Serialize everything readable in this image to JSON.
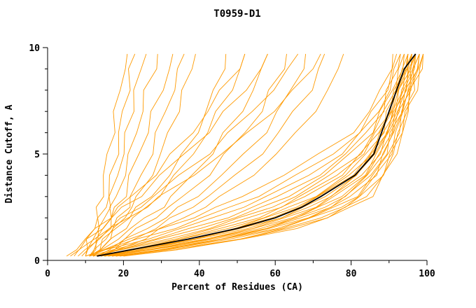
{
  "chart_data": {
    "type": "line",
    "title": "T0959-D1",
    "xlabel": "Percent of Residues (CA)",
    "ylabel": "Distance Cutoff, A",
    "xlim": [
      0,
      100
    ],
    "ylim": [
      0,
      10
    ],
    "x_major_ticks": [
      0,
      20,
      40,
      60,
      80,
      100
    ],
    "x_minor_step": 10,
    "y_major_ticks": [
      0,
      5,
      10
    ],
    "y_minor_step": 1,
    "grid": false,
    "legend": "none",
    "orange_color": "#FF9A00",
    "black_color": "#000000",
    "y_samples": [
      0.2,
      0.5,
      1,
      1.5,
      2,
      2.5,
      3,
      4,
      5,
      6,
      7,
      8,
      9,
      9.7
    ],
    "orange_series_x": [
      [
        9,
        10,
        11,
        12,
        13,
        13.5,
        14,
        15,
        16,
        17,
        18,
        19,
        20,
        21
      ],
      [
        10,
        11,
        12,
        13,
        14,
        15,
        16,
        17,
        18,
        19,
        20,
        21,
        22,
        23
      ],
      [
        10,
        11,
        12.5,
        14,
        15,
        16,
        17,
        18,
        20,
        21,
        22,
        23,
        25,
        26
      ],
      [
        11,
        12,
        13,
        15,
        16,
        17,
        18,
        20,
        22,
        23,
        25,
        26,
        28,
        29
      ],
      [
        11,
        12,
        14,
        16,
        17,
        18,
        20,
        22,
        24,
        26,
        28,
        30,
        32,
        33
      ],
      [
        12,
        13,
        15,
        17,
        19,
        21,
        22,
        25,
        27,
        29,
        31,
        33,
        35,
        36
      ],
      [
        12,
        14,
        16,
        18,
        20,
        22,
        24,
        27,
        30,
        32,
        34,
        36,
        38,
        39
      ],
      [
        11,
        13,
        15,
        18,
        21,
        24,
        27,
        32,
        36,
        39,
        42,
        44,
        46,
        47
      ],
      [
        12,
        14,
        17,
        20,
        23,
        26,
        29,
        34,
        38,
        42,
        45,
        48,
        51,
        52
      ],
      [
        12,
        15,
        18,
        22,
        26,
        30,
        33,
        38,
        43,
        47,
        51,
        54,
        57,
        58
      ],
      [
        13,
        16,
        20,
        24,
        28,
        32,
        36,
        42,
        47,
        52,
        56,
        59,
        62,
        63
      ],
      [
        13,
        17,
        21,
        26,
        31,
        35,
        39,
        46,
        52,
        57,
        61,
        64,
        67,
        68
      ],
      [
        14,
        18,
        23,
        28,
        33,
        38,
        42,
        50,
        56,
        61,
        65,
        69,
        72,
        73
      ],
      [
        14,
        19,
        25,
        30,
        36,
        41,
        46,
        54,
        60,
        66,
        70,
        74,
        77,
        78
      ],
      [
        5,
        7,
        10,
        13,
        16,
        19,
        22,
        28,
        33,
        38,
        42,
        46,
        50,
        52
      ],
      [
        6,
        8,
        11,
        14,
        17,
        20,
        24,
        30,
        36,
        42,
        47,
        52,
        56,
        58
      ],
      [
        7,
        9,
        12,
        16,
        20,
        24,
        28,
        35,
        42,
        48,
        54,
        59,
        64,
        66
      ],
      [
        8,
        10,
        13,
        17,
        21,
        26,
        30,
        38,
        46,
        53,
        59,
        65,
        70,
        72
      ],
      [
        10,
        14,
        22,
        30,
        38,
        45,
        51,
        62,
        72,
        80,
        85,
        88,
        90,
        91
      ],
      [
        10,
        15,
        24,
        33,
        41,
        48,
        55,
        66,
        75,
        82,
        86,
        89,
        91,
        92
      ],
      [
        11,
        16,
        26,
        35,
        44,
        51,
        58,
        69,
        77,
        83,
        87,
        90,
        92,
        93
      ],
      [
        11,
        17,
        28,
        38,
        47,
        54,
        61,
        71,
        79,
        84,
        88,
        90,
        92,
        93
      ],
      [
        12,
        18,
        30,
        40,
        49,
        57,
        63,
        73,
        80,
        85,
        88,
        91,
        93,
        94
      ],
      [
        12,
        19,
        32,
        42,
        51,
        59,
        65,
        75,
        82,
        86,
        89,
        91,
        93,
        94
      ],
      [
        12,
        20,
        33,
        44,
        53,
        61,
        67,
        76,
        83,
        87,
        90,
        92,
        94,
        95
      ],
      [
        13,
        21,
        35,
        46,
        55,
        62,
        68,
        77,
        83,
        87,
        90,
        92,
        94,
        95
      ],
      [
        13,
        22,
        36,
        47,
        57,
        64,
        70,
        79,
        84,
        88,
        90,
        92,
        94,
        95
      ],
      [
        13,
        22,
        37,
        49,
        58,
        65,
        71,
        80,
        85,
        88,
        91,
        93,
        95,
        96
      ],
      [
        14,
        23,
        38,
        50,
        59,
        66,
        72,
        80,
        85,
        89,
        91,
        93,
        95,
        96
      ],
      [
        14,
        24,
        39,
        51,
        61,
        68,
        73,
        81,
        86,
        89,
        91,
        93,
        95,
        96
      ],
      [
        14,
        24,
        40,
        52,
        62,
        69,
        74,
        82,
        86,
        89,
        92,
        94,
        95,
        96
      ],
      [
        15,
        25,
        41,
        54,
        63,
        70,
        75,
        83,
        87,
        90,
        92,
        94,
        96,
        97
      ],
      [
        15,
        26,
        42,
        55,
        64,
        71,
        76,
        83,
        87,
        90,
        92,
        94,
        96,
        97
      ],
      [
        15,
        26,
        43,
        56,
        65,
        72,
        77,
        84,
        88,
        90,
        92,
        94,
        96,
        97
      ],
      [
        16,
        27,
        44,
        57,
        66,
        73,
        78,
        85,
        88,
        91,
        93,
        95,
        96,
        97
      ],
      [
        16,
        28,
        45,
        58,
        67,
        74,
        79,
        85,
        89,
        91,
        93,
        95,
        97,
        98
      ],
      [
        17,
        29,
        46,
        59,
        68,
        75,
        80,
        86,
        89,
        91,
        93,
        95,
        97,
        98
      ],
      [
        17,
        30,
        47,
        60,
        69,
        76,
        81,
        86,
        90,
        92,
        94,
        95,
        97,
        98
      ],
      [
        18,
        31,
        48,
        61,
        70,
        77,
        82,
        87,
        90,
        92,
        94,
        96,
        97,
        98
      ],
      [
        18,
        32,
        50,
        63,
        72,
        78,
        83,
        88,
        91,
        93,
        94,
        96,
        98,
        99
      ],
      [
        19,
        33,
        51,
        64,
        73,
        79,
        84,
        88,
        91,
        93,
        95,
        96,
        98,
        99
      ],
      [
        20,
        34,
        52,
        65,
        74,
        80,
        85,
        89,
        92,
        93,
        95,
        97,
        98,
        99
      ]
    ],
    "black_series_x": [
      13,
      22,
      37,
      50,
      60,
      67,
      72,
      81,
      86,
      88,
      90,
      92,
      94,
      97
    ]
  }
}
